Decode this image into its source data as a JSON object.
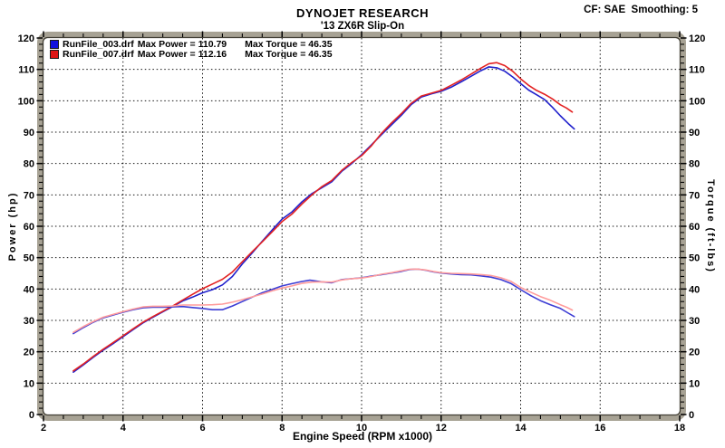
{
  "header": {
    "title": "DYNOJET RESEARCH",
    "subtitle": "'13 ZX6R Slip-On",
    "cf_label": "CF: SAE  Smoothing: 5"
  },
  "legend": [
    {
      "file": "RunFile_003.drf",
      "power_text": "Max Power = 110.79",
      "torque_text": "Max Torque = 46.35",
      "color": "#1010dd"
    },
    {
      "file": "RunFile_007.drf",
      "power_text": "Max Power = 112.16",
      "torque_text": "Max Torque = 46.35",
      "color": "#dd1515"
    }
  ],
  "chart_data": {
    "type": "line",
    "title": "DYNOJET RESEARCH",
    "subtitle": "'13 ZX6R Slip-On",
    "xlabel": "Engine Speed (RPM x1000)",
    "ylabel_left": "Power (hp)",
    "ylabel_right": "Torque (ft-lbs)",
    "xlim": [
      2,
      18
    ],
    "ylim": [
      0,
      120
    ],
    "x_major_step": 2,
    "x_minor_step": 0.5,
    "y_major_step": 10,
    "y_minor_step": 2,
    "grid": "dotted",
    "legend_position": "top-left",
    "series": [
      {
        "name": "runfile-003-power",
        "run": "RunFile_003.drf",
        "unit": "hp",
        "axis": "left",
        "color": "#2121cc",
        "max": 110.79,
        "points": [
          [
            2.75,
            13.5
          ],
          [
            3,
            15.8
          ],
          [
            3.25,
            18.2
          ],
          [
            3.5,
            20.5
          ],
          [
            3.75,
            22.6
          ],
          [
            4,
            24.8
          ],
          [
            4.25,
            27
          ],
          [
            4.5,
            29.2
          ],
          [
            4.75,
            31
          ],
          [
            5,
            32.7
          ],
          [
            5.25,
            34.4
          ],
          [
            5.5,
            36.2
          ],
          [
            5.75,
            37.4
          ],
          [
            6,
            38.8
          ],
          [
            6.25,
            39.8
          ],
          [
            6.5,
            41.3
          ],
          [
            6.75,
            44
          ],
          [
            7,
            48
          ],
          [
            7.25,
            51.5
          ],
          [
            7.5,
            55.2
          ],
          [
            7.75,
            58.8
          ],
          [
            8,
            62.3
          ],
          [
            8.25,
            64.6
          ],
          [
            8.5,
            67.8
          ],
          [
            8.75,
            70.4
          ],
          [
            9,
            72.3
          ],
          [
            9.25,
            74.2
          ],
          [
            9.5,
            77.5
          ],
          [
            9.75,
            80
          ],
          [
            10,
            82.8
          ],
          [
            10.25,
            86
          ],
          [
            10.5,
            89.2
          ],
          [
            10.75,
            92.3
          ],
          [
            11,
            95.4
          ],
          [
            11.25,
            98.8
          ],
          [
            11.5,
            101.2
          ],
          [
            11.75,
            102.2
          ],
          [
            12,
            103
          ],
          [
            12.25,
            104.3
          ],
          [
            12.5,
            106
          ],
          [
            12.75,
            107.8
          ],
          [
            13,
            109.6
          ],
          [
            13.2,
            110.79
          ],
          [
            13.4,
            110.5
          ],
          [
            13.6,
            109.4
          ],
          [
            13.8,
            107.6
          ],
          [
            14,
            105.5
          ],
          [
            14.2,
            103.4
          ],
          [
            14.4,
            101.9
          ],
          [
            14.6,
            100.4
          ],
          [
            14.8,
            97.9
          ],
          [
            15,
            95.2
          ],
          [
            15.2,
            92.7
          ],
          [
            15.35,
            91
          ]
        ]
      },
      {
        "name": "runfile-007-power",
        "run": "RunFile_007.drf",
        "unit": "hp",
        "axis": "left",
        "color": "#e32222",
        "max": 112.16,
        "points": [
          [
            2.75,
            13.9
          ],
          [
            3,
            16.1
          ],
          [
            3.25,
            18.5
          ],
          [
            3.5,
            20.8
          ],
          [
            3.75,
            22.9
          ],
          [
            4,
            25.1
          ],
          [
            4.25,
            27.3
          ],
          [
            4.5,
            29.4
          ],
          [
            4.75,
            31.2
          ],
          [
            5,
            32.9
          ],
          [
            5.25,
            34.6
          ],
          [
            5.5,
            36.5
          ],
          [
            5.75,
            38.3
          ],
          [
            6,
            40.1
          ],
          [
            6.25,
            41.6
          ],
          [
            6.5,
            43.1
          ],
          [
            6.75,
            45.4
          ],
          [
            7,
            48.7
          ],
          [
            7.25,
            51.9
          ],
          [
            7.5,
            55
          ],
          [
            7.75,
            58.2
          ],
          [
            8,
            61.5
          ],
          [
            8.25,
            63.9
          ],
          [
            8.5,
            67.1
          ],
          [
            8.75,
            70
          ],
          [
            9,
            72.6
          ],
          [
            9.25,
            74.6
          ],
          [
            9.5,
            77.8
          ],
          [
            9.75,
            80.3
          ],
          [
            10,
            82.5
          ],
          [
            10.25,
            85.7
          ],
          [
            10.5,
            89.6
          ],
          [
            10.75,
            92.9
          ],
          [
            11,
            95.9
          ],
          [
            11.25,
            99.2
          ],
          [
            11.5,
            101.5
          ],
          [
            11.75,
            102.4
          ],
          [
            12,
            103.3
          ],
          [
            12.25,
            104.9
          ],
          [
            12.5,
            106.6
          ],
          [
            12.75,
            108.5
          ],
          [
            13,
            110.4
          ],
          [
            13.2,
            111.8
          ],
          [
            13.4,
            112.16
          ],
          [
            13.6,
            111.2
          ],
          [
            13.8,
            109.4
          ],
          [
            14,
            107
          ],
          [
            14.2,
            104.9
          ],
          [
            14.4,
            103.3
          ],
          [
            14.6,
            102.1
          ],
          [
            14.8,
            100.6
          ],
          [
            15,
            98.7
          ],
          [
            15.15,
            97.7
          ],
          [
            15.3,
            96.4
          ]
        ]
      },
      {
        "name": "runfile-003-torque",
        "run": "RunFile_003.drf",
        "unit": "ft-lbs",
        "axis": "right",
        "color": "#3d3dd4",
        "max": 46.35,
        "points": [
          [
            2.75,
            25.8
          ],
          [
            3,
            27.7
          ],
          [
            3.25,
            29.4
          ],
          [
            3.5,
            30.8
          ],
          [
            3.75,
            31.7
          ],
          [
            4,
            32.6
          ],
          [
            4.25,
            33.4
          ],
          [
            4.5,
            34
          ],
          [
            4.75,
            34.2
          ],
          [
            5,
            34.2
          ],
          [
            5.25,
            34.3
          ],
          [
            5.5,
            34.4
          ],
          [
            5.75,
            34.1
          ],
          [
            6,
            33.8
          ],
          [
            6.25,
            33.4
          ],
          [
            6.5,
            33.4
          ],
          [
            6.75,
            34.6
          ],
          [
            7,
            36
          ],
          [
            7.25,
            37.4
          ],
          [
            7.5,
            38.8
          ],
          [
            7.75,
            39.9
          ],
          [
            8,
            41
          ],
          [
            8.25,
            41.7
          ],
          [
            8.5,
            42.4
          ],
          [
            8.7,
            42.8
          ],
          [
            9,
            42.3
          ],
          [
            9.25,
            42
          ],
          [
            9.5,
            43
          ],
          [
            9.75,
            43.3
          ],
          [
            10,
            43.6
          ],
          [
            10.25,
            44.1
          ],
          [
            10.5,
            44.6
          ],
          [
            10.75,
            45.1
          ],
          [
            11,
            45.6
          ],
          [
            11.2,
            46.2
          ],
          [
            11.4,
            46.35
          ],
          [
            11.6,
            46
          ],
          [
            11.8,
            45.5
          ],
          [
            12,
            45.1
          ],
          [
            12.25,
            44.8
          ],
          [
            12.5,
            44.6
          ],
          [
            12.75,
            44.5
          ],
          [
            13,
            44.2
          ],
          [
            13.25,
            43.8
          ],
          [
            13.5,
            43
          ],
          [
            13.75,
            41.8
          ],
          [
            14,
            39.8
          ],
          [
            14.25,
            37.9
          ],
          [
            14.5,
            36.3
          ],
          [
            14.75,
            35
          ],
          [
            15,
            33.8
          ],
          [
            15.2,
            32.3
          ],
          [
            15.35,
            31.2
          ]
        ]
      },
      {
        "name": "runfile-007-torque",
        "run": "RunFile_007.drf",
        "unit": "ft-lbs",
        "axis": "right",
        "color": "#ff9c9c",
        "max": 46.35,
        "points": [
          [
            2.75,
            26.2
          ],
          [
            3,
            28
          ],
          [
            3.25,
            29.6
          ],
          [
            3.5,
            31
          ],
          [
            3.75,
            31.9
          ],
          [
            4,
            32.8
          ],
          [
            4.25,
            33.6
          ],
          [
            4.5,
            34.3
          ],
          [
            4.75,
            34.5
          ],
          [
            5,
            34.5
          ],
          [
            5.25,
            34.6
          ],
          [
            5.5,
            34.9
          ],
          [
            5.75,
            34.9
          ],
          [
            6,
            34.9
          ],
          [
            6.25,
            35
          ],
          [
            6.5,
            35.2
          ],
          [
            6.75,
            35.8
          ],
          [
            7,
            36.6
          ],
          [
            7.25,
            37.5
          ],
          [
            7.5,
            38.4
          ],
          [
            7.75,
            39.4
          ],
          [
            8,
            40.3
          ],
          [
            8.25,
            41
          ],
          [
            8.5,
            41.8
          ],
          [
            8.75,
            42.2
          ],
          [
            9,
            42.3
          ],
          [
            9.25,
            42.2
          ],
          [
            9.5,
            42.9
          ],
          [
            9.75,
            43.3
          ],
          [
            10,
            43.5
          ],
          [
            10.25,
            44
          ],
          [
            10.5,
            44.7
          ],
          [
            10.75,
            45.2
          ],
          [
            11,
            45.8
          ],
          [
            11.2,
            46.3
          ],
          [
            11.4,
            46.35
          ],
          [
            11.6,
            46.1
          ],
          [
            11.8,
            45.6
          ],
          [
            12,
            45.2
          ],
          [
            12.25,
            45
          ],
          [
            12.5,
            44.9
          ],
          [
            12.75,
            44.8
          ],
          [
            13,
            44.6
          ],
          [
            13.25,
            44.3
          ],
          [
            13.5,
            43.6
          ],
          [
            13.75,
            42.5
          ],
          [
            14,
            40.5
          ],
          [
            14.25,
            39
          ],
          [
            14.5,
            37.6
          ],
          [
            14.75,
            36.4
          ],
          [
            15,
            35
          ],
          [
            15.15,
            34.2
          ],
          [
            15.3,
            33.3
          ]
        ]
      }
    ]
  }
}
